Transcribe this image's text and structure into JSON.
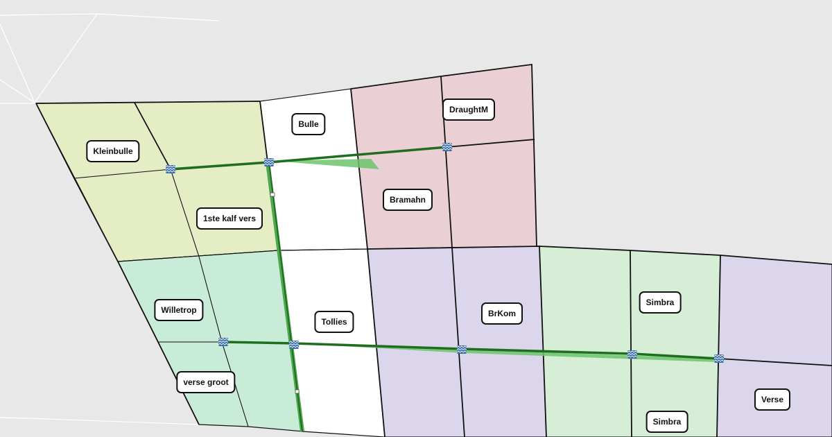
{
  "map": {
    "colors": {
      "background": "#e8e8e8",
      "group_yellow": "#e5edc4",
      "group_pink": "#eacfd4",
      "group_mint": "#c8ecd8",
      "group_lavender": "#dcd6ec",
      "group_green": "#d6eed6",
      "unassigned": "#ffffff",
      "water_pipe": "#1f6e1f",
      "water_pipe_highlight": "#6cc46c"
    },
    "paddocks": [
      {
        "name": "Kleinbulle"
      },
      {
        "name": "Bulle"
      },
      {
        "name": "DraughtM"
      },
      {
        "name": "1ste kalf vers"
      },
      {
        "name": "Bramahn"
      },
      {
        "name": "Willetrop"
      },
      {
        "name": "Tollies"
      },
      {
        "name": "BrKom"
      },
      {
        "name": "Simbra"
      },
      {
        "name": "verse groot"
      },
      {
        "name": "Verse"
      },
      {
        "name": "Simbra"
      }
    ],
    "icons": {
      "water_point": "water-trough-icon",
      "valve": "valve-icon"
    }
  }
}
